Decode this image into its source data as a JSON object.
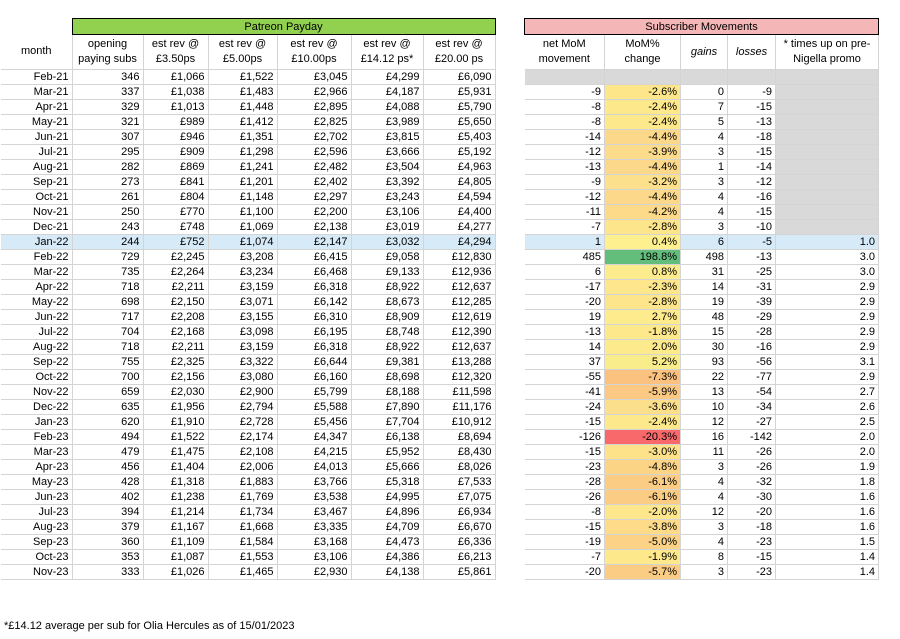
{
  "left_table": {
    "banner": "Patreon Payday",
    "headers": [
      "month",
      "opening paying subs",
      "est rev @ £3.50ps",
      "est rev @ £5.00ps",
      "est rev @ £10.00ps",
      "est rev @ £14.12 ps*",
      "est rev @ £20.00 ps"
    ],
    "rows": [
      [
        "Feb-21",
        "346",
        "£1,066",
        "£1,522",
        "£3,045",
        "£4,299",
        "£6,090"
      ],
      [
        "Mar-21",
        "337",
        "£1,038",
        "£1,483",
        "£2,966",
        "£4,187",
        "£5,931"
      ],
      [
        "Apr-21",
        "329",
        "£1,013",
        "£1,448",
        "£2,895",
        "£4,088",
        "£5,790"
      ],
      [
        "May-21",
        "321",
        "£989",
        "£1,412",
        "£2,825",
        "£3,989",
        "£5,650"
      ],
      [
        "Jun-21",
        "307",
        "£946",
        "£1,351",
        "£2,702",
        "£3,815",
        "£5,403"
      ],
      [
        "Jul-21",
        "295",
        "£909",
        "£1,298",
        "£2,596",
        "£3,666",
        "£5,192"
      ],
      [
        "Aug-21",
        "282",
        "£869",
        "£1,241",
        "£2,482",
        "£3,504",
        "£4,963"
      ],
      [
        "Sep-21",
        "273",
        "£841",
        "£1,201",
        "£2,402",
        "£3,392",
        "£4,805"
      ],
      [
        "Oct-21",
        "261",
        "£804",
        "£1,148",
        "£2,297",
        "£3,243",
        "£4,594"
      ],
      [
        "Nov-21",
        "250",
        "£770",
        "£1,100",
        "£2,200",
        "£3,106",
        "£4,400"
      ],
      [
        "Dec-21",
        "243",
        "£748",
        "£1,069",
        "£2,138",
        "£3,019",
        "£4,277"
      ],
      [
        "Jan-22",
        "244",
        "£752",
        "£1,074",
        "£2,147",
        "£3,032",
        "£4,294"
      ],
      [
        "Feb-22",
        "729",
        "£2,245",
        "£3,208",
        "£6,415",
        "£9,058",
        "£12,830"
      ],
      [
        "Mar-22",
        "735",
        "£2,264",
        "£3,234",
        "£6,468",
        "£9,133",
        "£12,936"
      ],
      [
        "Apr-22",
        "718",
        "£2,211",
        "£3,159",
        "£6,318",
        "£8,922",
        "£12,637"
      ],
      [
        "May-22",
        "698",
        "£2,150",
        "£3,071",
        "£6,142",
        "£8,673",
        "£12,285"
      ],
      [
        "Jun-22",
        "717",
        "£2,208",
        "£3,155",
        "£6,310",
        "£8,909",
        "£12,619"
      ],
      [
        "Jul-22",
        "704",
        "£2,168",
        "£3,098",
        "£6,195",
        "£8,748",
        "£12,390"
      ],
      [
        "Aug-22",
        "718",
        "£2,211",
        "£3,159",
        "£6,318",
        "£8,922",
        "£12,637"
      ],
      [
        "Sep-22",
        "755",
        "£2,325",
        "£3,322",
        "£6,644",
        "£9,381",
        "£13,288"
      ],
      [
        "Oct-22",
        "700",
        "£2,156",
        "£3,080",
        "£6,160",
        "£8,698",
        "£12,320"
      ],
      [
        "Nov-22",
        "659",
        "£2,030",
        "£2,900",
        "£5,799",
        "£8,188",
        "£11,598"
      ],
      [
        "Dec-22",
        "635",
        "£1,956",
        "£2,794",
        "£5,588",
        "£7,890",
        "£11,176"
      ],
      [
        "Jan-23",
        "620",
        "£1,910",
        "£2,728",
        "£5,456",
        "£7,704",
        "£10,912"
      ],
      [
        "Feb-23",
        "494",
        "£1,522",
        "£2,174",
        "£4,347",
        "£6,138",
        "£8,694"
      ],
      [
        "Mar-23",
        "479",
        "£1,475",
        "£2,108",
        "£4,215",
        "£5,952",
        "£8,430"
      ],
      [
        "Apr-23",
        "456",
        "£1,404",
        "£2,006",
        "£4,013",
        "£5,666",
        "£8,026"
      ],
      [
        "May-23",
        "428",
        "£1,318",
        "£1,883",
        "£3,766",
        "£5,318",
        "£7,533"
      ],
      [
        "Jun-23",
        "402",
        "£1,238",
        "£1,769",
        "£3,538",
        "£4,995",
        "£7,075"
      ],
      [
        "Jul-23",
        "394",
        "£1,214",
        "£1,734",
        "£3,467",
        "£4,896",
        "£6,934"
      ],
      [
        "Aug-23",
        "379",
        "£1,167",
        "£1,668",
        "£3,335",
        "£4,709",
        "£6,670"
      ],
      [
        "Sep-23",
        "360",
        "£1,109",
        "£1,584",
        "£3,168",
        "£4,473",
        "£6,336"
      ],
      [
        "Oct-23",
        "353",
        "£1,087",
        "£1,553",
        "£3,106",
        "£4,386",
        "£6,213"
      ],
      [
        "Nov-23",
        "333",
        "£1,026",
        "£1,465",
        "£2,930",
        "£4,138",
        "£5,861"
      ]
    ]
  },
  "right_table": {
    "banner": "Subscriber Movements",
    "headers": [
      "net MoM movement",
      "MoM% change",
      "gains",
      "losses",
      "* times up on pre-Nigella promo"
    ],
    "rows": [
      [
        "",
        "",
        "",
        "",
        ""
      ],
      [
        "-9",
        "-2.6%",
        "0",
        "-9",
        ""
      ],
      [
        "-8",
        "-2.4%",
        "7",
        "-15",
        ""
      ],
      [
        "-8",
        "-2.4%",
        "5",
        "-13",
        ""
      ],
      [
        "-14",
        "-4.4%",
        "4",
        "-18",
        ""
      ],
      [
        "-12",
        "-3.9%",
        "3",
        "-15",
        ""
      ],
      [
        "-13",
        "-4.4%",
        "1",
        "-14",
        ""
      ],
      [
        "-9",
        "-3.2%",
        "3",
        "-12",
        ""
      ],
      [
        "-12",
        "-4.4%",
        "4",
        "-16",
        ""
      ],
      [
        "-11",
        "-4.2%",
        "4",
        "-15",
        ""
      ],
      [
        "-7",
        "-2.8%",
        "3",
        "-10",
        ""
      ],
      [
        "1",
        "0.4%",
        "6",
        "-5",
        "1.0"
      ],
      [
        "485",
        "198.8%",
        "498",
        "-13",
        "3.0"
      ],
      [
        "6",
        "0.8%",
        "31",
        "-25",
        "3.0"
      ],
      [
        "-17",
        "-2.3%",
        "14",
        "-31",
        "2.9"
      ],
      [
        "-20",
        "-2.8%",
        "19",
        "-39",
        "2.9"
      ],
      [
        "19",
        "2.7%",
        "48",
        "-29",
        "2.9"
      ],
      [
        "-13",
        "-1.8%",
        "15",
        "-28",
        "2.9"
      ],
      [
        "14",
        "2.0%",
        "30",
        "-16",
        "2.9"
      ],
      [
        "37",
        "5.2%",
        "93",
        "-56",
        "3.1"
      ],
      [
        "-55",
        "-7.3%",
        "22",
        "-77",
        "2.9"
      ],
      [
        "-41",
        "-5.9%",
        "13",
        "-54",
        "2.7"
      ],
      [
        "-24",
        "-3.6%",
        "10",
        "-34",
        "2.6"
      ],
      [
        "-15",
        "-2.4%",
        "12",
        "-27",
        "2.5"
      ],
      [
        "-126",
        "-20.3%",
        "16",
        "-142",
        "2.0"
      ],
      [
        "-15",
        "-3.0%",
        "11",
        "-26",
        "2.0"
      ],
      [
        "-23",
        "-4.8%",
        "3",
        "-26",
        "1.9"
      ],
      [
        "-28",
        "-6.1%",
        "4",
        "-32",
        "1.8"
      ],
      [
        "-26",
        "-6.1%",
        "4",
        "-30",
        "1.6"
      ],
      [
        "-8",
        "-2.0%",
        "12",
        "-20",
        "1.6"
      ],
      [
        "-15",
        "-3.8%",
        "3",
        "-18",
        "1.6"
      ],
      [
        "-19",
        "-5.0%",
        "4",
        "-23",
        "1.5"
      ],
      [
        "-7",
        "-1.9%",
        "8",
        "-15",
        "1.4"
      ],
      [
        "-20",
        "-5.7%",
        "3",
        "-23",
        "1.4"
      ]
    ],
    "mom_colors": [
      "",
      "#fde68a",
      "#fde88b",
      "#fde88b",
      "#fcd98a",
      "#fcdc8a",
      "#fcd98a",
      "#fde08b",
      "#fcd98a",
      "#fcda8a",
      "#fde58b",
      "#fef08e",
      "#63be7b",
      "#fdec8d",
      "#fde68b",
      "#fde58b",
      "#fdeb8d",
      "#fde88c",
      "#fdea8d",
      "#f9ec8a",
      "#fbc27f",
      "#fbc983",
      "#fcdf8a",
      "#fde88b",
      "#f8696b",
      "#fde28a",
      "#fcd486",
      "#fbcc84",
      "#fbcc84",
      "#fde68b",
      "#fddb88",
      "#fcd386",
      "#fde88c",
      "#fbcd84"
    ],
    "highlight_row": 11,
    "grey_promo_rows": 11
  },
  "footnote": "*£14.12 average per sub for Olia Hercules as of 15/01/2023"
}
